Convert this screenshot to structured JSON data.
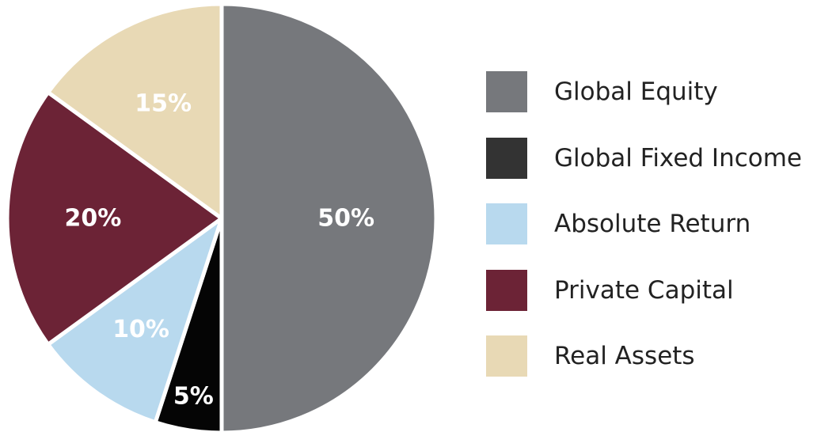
{
  "chart_data": {
    "type": "pie",
    "slices": [
      {
        "label": "Global Equity",
        "value": 50,
        "display": "50%",
        "color": "#76787c"
      },
      {
        "label": "Global Fixed Income",
        "value": 5,
        "display": "5%",
        "color": "#050505"
      },
      {
        "label": "Absolute Return",
        "value": 10,
        "display": "10%",
        "color": "#b8d9ee"
      },
      {
        "label": "Private Capital",
        "value": 20,
        "display": "20%",
        "color": "#6c2336"
      },
      {
        "label": "Real Assets",
        "value": 15,
        "display": "15%",
        "color": "#e8d9b5"
      }
    ],
    "legend": {
      "position": "right",
      "entries": [
        {
          "label": "Global Equity",
          "color": "#76787c"
        },
        {
          "label": "Global Fixed Income",
          "color": "#333333"
        },
        {
          "label": "Absolute Return",
          "color": "#b8d9ee"
        },
        {
          "label": "Private Capital",
          "color": "#6c2336"
        },
        {
          "label": "Real Assets",
          "color": "#e8d9b5"
        }
      ]
    },
    "start": "12 o'clock",
    "direction": "clockwise"
  }
}
